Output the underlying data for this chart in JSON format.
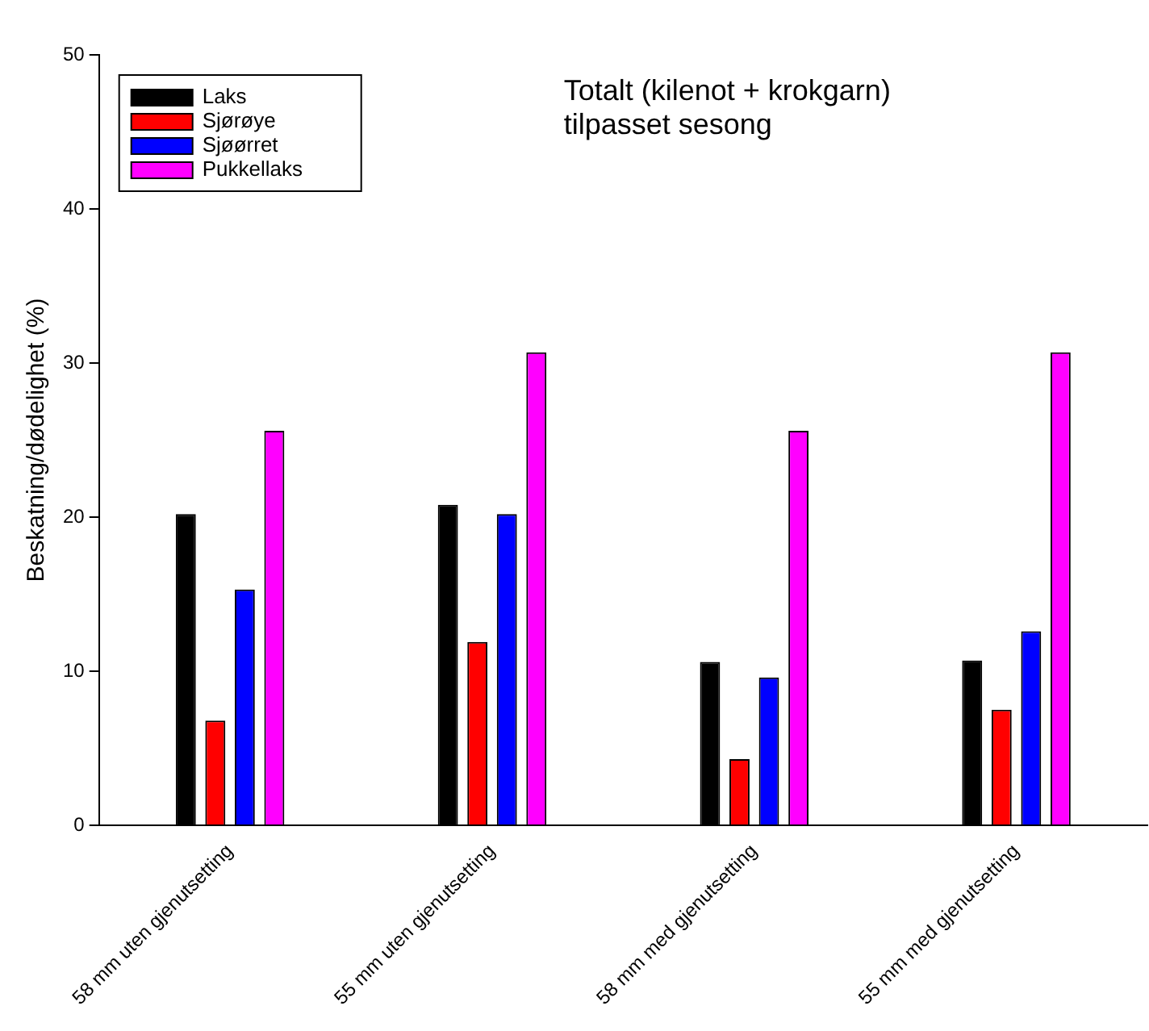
{
  "chart_data": {
    "type": "bar",
    "title": "Totalt (kilenot + krokgarn)\ntilpasset sesong",
    "ylabel": "Beskatning/dødelighet (%)",
    "categories": [
      "58 mm uten gjenutsetting",
      "55 mm uten gjenutsetting",
      "58 mm med gjenutsetting",
      "55 mm med gjenutsetting"
    ],
    "series": [
      {
        "name": "Laks",
        "color": "#000000",
        "values": [
          20.2,
          20.8,
          10.6,
          10.7
        ]
      },
      {
        "name": "Sjørøye",
        "color": "#ff0000",
        "values": [
          6.8,
          11.9,
          4.3,
          7.5
        ]
      },
      {
        "name": "Sjøørret",
        "color": "#0000ff",
        "values": [
          15.3,
          20.2,
          9.6,
          12.6
        ]
      },
      {
        "name": "Pukkellaks",
        "color": "#ff00ff",
        "values": [
          25.6,
          30.7,
          25.6,
          30.7
        ]
      }
    ],
    "ylim": [
      0,
      50
    ],
    "yticks": [
      0,
      10,
      20,
      30,
      40,
      50
    ],
    "grid": false,
    "legend": "top left"
  }
}
